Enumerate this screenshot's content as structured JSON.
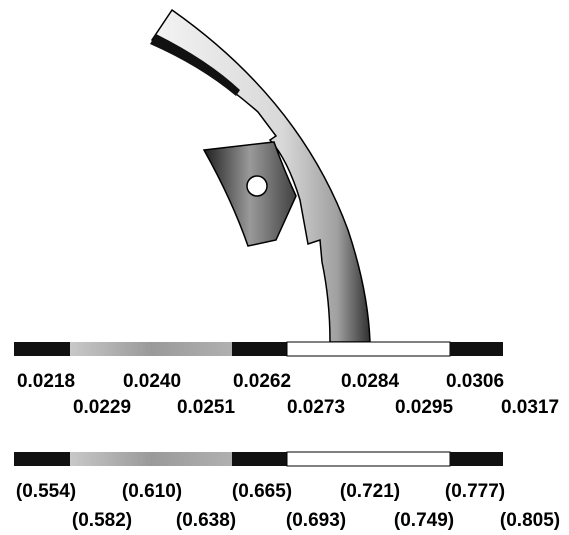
{
  "scales": [
    {
      "labels_top": [
        "0.0218",
        "0.0240",
        "0.0262",
        "0.0284",
        "0.0306"
      ],
      "labels_bottom": [
        "0.0229",
        "0.0251",
        "0.0273",
        "0.0295",
        "0.0317"
      ]
    },
    {
      "labels_top": [
        "(0.554)",
        "(0.610)",
        "(0.665)",
        "(0.721)",
        "(0.777)"
      ],
      "labels_bottom": [
        "(0.582)",
        "(0.638)",
        "(0.693)",
        "(0.749)",
        "(0.805)"
      ]
    }
  ]
}
